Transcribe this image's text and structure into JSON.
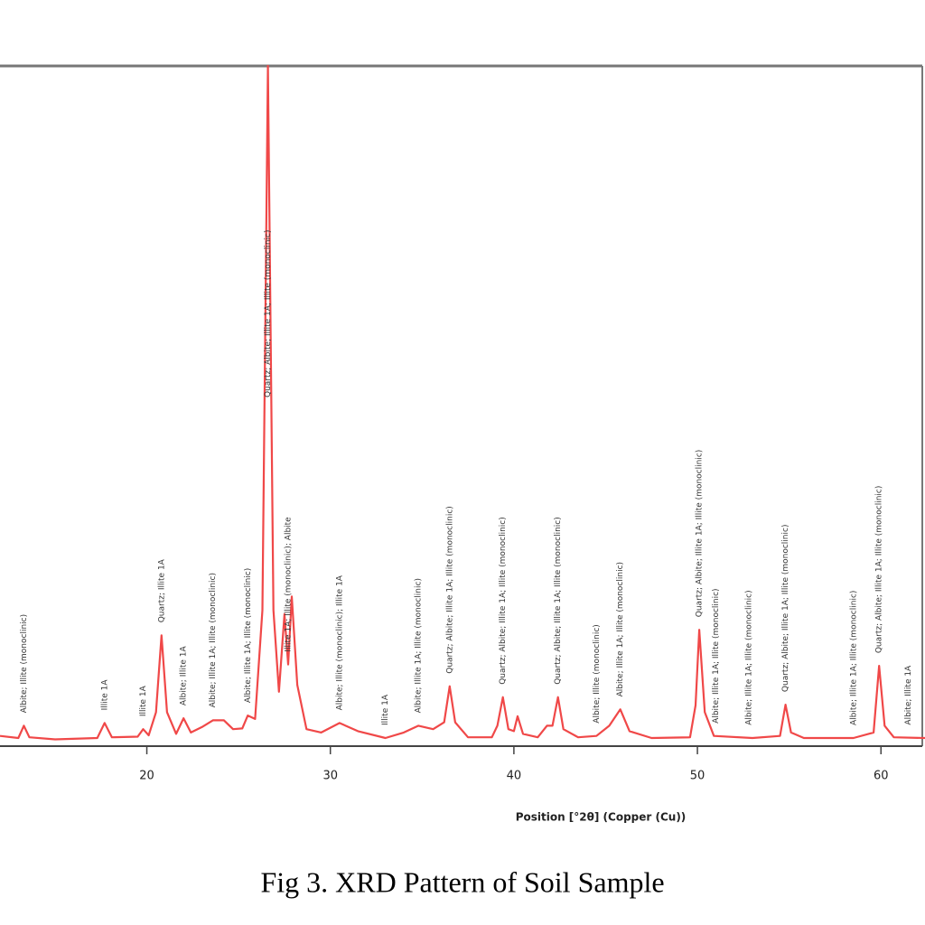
{
  "chart_data": {
    "type": "line",
    "x_label": "Position [°2θ] (Copper (Cu))",
    "caption": "Fig 3. XRD Pattern of Soil Sample",
    "xlim": [
      12,
      62.4
    ],
    "xticks": [
      20,
      30,
      40,
      50,
      60
    ],
    "ylim": [
      0,
      100
    ],
    "series": [
      {
        "color": "#f04848",
        "x": [
          12,
          13,
          13.3,
          13.6,
          15,
          17.3,
          17.7,
          18.1,
          19.5,
          19.8,
          20.1,
          20.5,
          20.8,
          21.1,
          21.6,
          22,
          22.4,
          23,
          23.6,
          24.2,
          24.7,
          25.2,
          25.5,
          25.9,
          26.3,
          26.6,
          26.9,
          27.2,
          27.5,
          27.7,
          27.9,
          28.2,
          28.7,
          29.5,
          30.5,
          31.5,
          33,
          34,
          34.8,
          35.6,
          36.2,
          36.5,
          36.8,
          37.5,
          38.8,
          39.1,
          39.4,
          39.7,
          40,
          40.2,
          40.5,
          41.3,
          41.8,
          42.1,
          42.4,
          42.7,
          43.5,
          44.5,
          45.2,
          45.8,
          46.3,
          47.5,
          49.6,
          49.9,
          50.1,
          50.4,
          50.9,
          53,
          54.5,
          54.8,
          55.1,
          55.8,
          58.5,
          59.6,
          59.9,
          60.2,
          60.7,
          62.4
        ],
        "values": [
          1.5,
          1.2,
          3,
          1.3,
          1,
          1.2,
          3.4,
          1.3,
          1.4,
          2.5,
          1.6,
          5,
          16.3,
          5,
          1.8,
          4.1,
          2,
          2.8,
          3.8,
          3.8,
          2.5,
          2.6,
          4.5,
          4,
          20,
          100,
          20,
          8,
          19.4,
          12,
          22,
          9,
          2.5,
          2,
          3.4,
          2.2,
          1.2,
          2,
          3,
          2.5,
          3.5,
          8.8,
          3.5,
          1.3,
          1.3,
          3,
          7.2,
          2.5,
          2.2,
          4.4,
          1.8,
          1.3,
          3,
          3,
          7.2,
          2.5,
          1.3,
          1.5,
          3,
          5.4,
          2.2,
          1.2,
          1.3,
          6,
          17.1,
          5,
          1.5,
          1.2,
          1.5,
          6.1,
          2,
          1.2,
          1.2,
          2,
          11.8,
          3,
          1.3,
          1.2
        ]
      }
    ],
    "peak_labels": [
      {
        "x": 13.3,
        "text": "Albite; Illite (monoclinic)"
      },
      {
        "x": 17.7,
        "text": "Illite 1A"
      },
      {
        "x": 19.8,
        "text": "Illite 1A"
      },
      {
        "x": 20.8,
        "text": "Quartz; Illite 1A"
      },
      {
        "x": 22,
        "text": "Albite; Illite 1A"
      },
      {
        "x": 23.6,
        "text": "Albite; Illite 1A; Illite (monoclinic)"
      },
      {
        "x": 25.5,
        "text": "Albite; Illite 1A; Illite (monoclinic)"
      },
      {
        "x": 26.6,
        "text": "Quartz; Albite; Illite 1A; Illite (monoclinic)"
      },
      {
        "x": 27.7,
        "text": "Illite 1A; Illite (monoclinic); Albite"
      },
      {
        "x": 30.5,
        "text": "Albite; Illite (monoclinic); Illite 1A"
      },
      {
        "x": 33,
        "text": "Illite 1A"
      },
      {
        "x": 34.8,
        "text": "Albite; Illite 1A; Illite (monoclinic)"
      },
      {
        "x": 36.5,
        "text": "Quartz; Albite; Illite 1A; Illite (monoclinic)"
      },
      {
        "x": 39.4,
        "text": "Quartz; Albite; Illite 1A; Illite (monoclinic)"
      },
      {
        "x": 42.4,
        "text": "Quartz; Albite; Illite 1A; Illite (monoclinic)"
      },
      {
        "x": 44.5,
        "text": "Albite; Illite (monoclinic)"
      },
      {
        "x": 45.8,
        "text": "Albite; Illite 1A; Illite (monoclinic)"
      },
      {
        "x": 50.1,
        "text": "Quartz; Albite; Illite 1A; Illite (monoclinic)"
      },
      {
        "x": 51,
        "text": "Albite; Illite 1A; Illite (monoclinic)"
      },
      {
        "x": 52.8,
        "text": "Albite; Illite 1A; Illite (monoclinic)"
      },
      {
        "x": 54.8,
        "text": "Quartz; Albite; Illite 1A; Illite (monoclinic)"
      },
      {
        "x": 58.5,
        "text": "Albite; Illite 1A; Illite (monoclinic)"
      },
      {
        "x": 59.9,
        "text": "Quartz; Albite; Illite 1A; Illite (monoclinic)"
      },
      {
        "x": 61.5,
        "text": "Albite; Illite 1A"
      }
    ]
  }
}
